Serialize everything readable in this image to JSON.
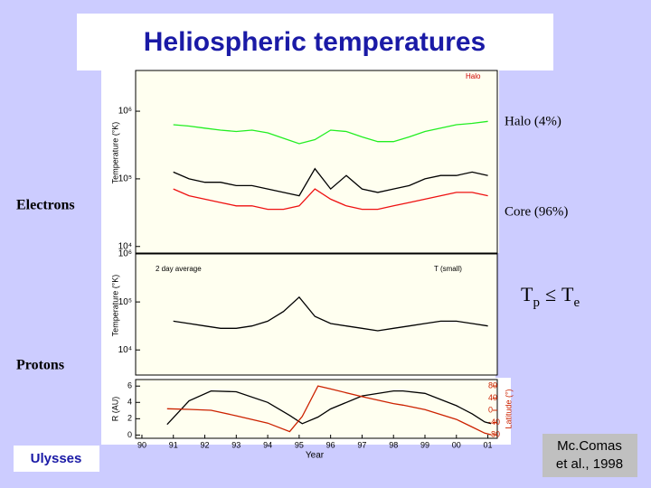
{
  "slide": {
    "title": "Heliospheric temperatures",
    "halo_label": "Halo (4%)",
    "electrons_label": "Electrons",
    "core_label": "Core (96%)",
    "proton_relation": [
      "T",
      "p",
      "≤",
      "T",
      "e"
    ],
    "protons_label": "Protons",
    "mission_label": "Ulysses",
    "citation": [
      "Mc.Comas",
      "et al., 1998"
    ]
  },
  "chart_data": [
    {
      "type": "line",
      "ylabel": "Temperature (°K)",
      "annotations": [
        "Halo"
      ],
      "log": true,
      "x": [
        91,
        91.5,
        92,
        92.5,
        93,
        93.5,
        94,
        94.5,
        95,
        95.5,
        96,
        96.5,
        97,
        97.5,
        98,
        98.5,
        99,
        99.5,
        100,
        100.5,
        101
      ],
      "xlim": [
        89.8,
        101.3
      ],
      "ylim": [
        8000,
        4000000
      ],
      "yticks": [
        {
          "value": 1000000,
          "label": "10⁶"
        },
        {
          "value": 100000,
          "label": "10⁵"
        },
        {
          "value": 10000,
          "label": "10⁴"
        }
      ],
      "series": [
        {
          "color": "#22ee22",
          "values": [
            631000,
            603000,
            562000,
            525000,
            501000,
            525000,
            479000,
            398000,
            331000,
            380000,
            525000,
            501000,
            417000,
            355000,
            355000,
            417000,
            501000,
            562000,
            631000,
            661000,
            708000
          ]
        },
        {
          "color": "#000000",
          "values": [
            126000,
            100000,
            89100,
            89100,
            79400,
            79400,
            70800,
            63100,
            56200,
            141000,
            70800,
            112000,
            70800,
            63100,
            70800,
            79400,
            100000,
            112000,
            112000,
            126000,
            112000
          ]
        },
        {
          "color": "#ee1111",
          "values": [
            70800,
            56200,
            50100,
            44700,
            39800,
            39800,
            35500,
            35500,
            39800,
            70800,
            50100,
            39800,
            35500,
            35500,
            39800,
            44700,
            50100,
            56200,
            63100,
            63100,
            56200
          ]
        }
      ]
    },
    {
      "type": "line",
      "ylabel": "Temperature (°K)",
      "annotations": [
        "2 day average",
        "T (small)"
      ],
      "log": true,
      "x": [
        91,
        91.5,
        92,
        92.5,
        93,
        93.5,
        94,
        94.5,
        95,
        95.5,
        96,
        96.5,
        97,
        97.5,
        98,
        98.5,
        99,
        99.5,
        100,
        100.5,
        101
      ],
      "xlim": [
        89.8,
        101.3
      ],
      "ylim": [
        3000,
        1000000
      ],
      "yticks": [
        {
          "value": 1000000,
          "label": "10⁶"
        },
        {
          "value": 100000,
          "label": "10⁵"
        },
        {
          "value": 10000,
          "label": "10⁴"
        }
      ],
      "series": [
        {
          "color": "#000000",
          "values": [
            39800,
            35500,
            31600,
            28200,
            28200,
            31600,
            39800,
            63100,
            126000,
            50100,
            35500,
            31600,
            28200,
            25100,
            28200,
            31600,
            35500,
            39800,
            39800,
            35500,
            31600
          ]
        }
      ]
    },
    {
      "type": "line",
      "ylabel": "R (AU)",
      "y2label": "Latitude (°)",
      "xlabel": "Year",
      "x": [
        90.8,
        91.5,
        92.2,
        93,
        94,
        94.7,
        95.1,
        95.6,
        96,
        97,
        98,
        98.3,
        99,
        100,
        100.5,
        100.9,
        101.1
      ],
      "xlim": [
        89.8,
        101.3
      ],
      "ylim": [
        -0.4,
        6.8
      ],
      "y2lim": [
        -92,
        101
      ],
      "xticks": [
        90,
        91,
        92,
        93,
        94,
        95,
        96,
        97,
        98,
        99,
        {
          "value": 100,
          "label": "00"
        },
        {
          "value": 101,
          "label": "01"
        }
      ],
      "yticks": [
        0,
        2,
        4,
        6
      ],
      "y2ticks": [
        80,
        40,
        0,
        -40,
        -80
      ],
      "series": [
        {
          "color": "#000000",
          "values": [
            1.3,
            4.2,
            5.4,
            5.3,
            4.0,
            2.4,
            1.4,
            2.2,
            3.2,
            4.8,
            5.4,
            5.4,
            5.1,
            3.6,
            2.6,
            1.6,
            1.4
          ]
        },
        {
          "color": "#cc2200",
          "axis": "y2",
          "values": [
            5,
            3,
            0,
            -18,
            -42,
            -70,
            -20,
            80,
            70,
            45,
            22,
            17,
            2,
            -30,
            -55,
            -75,
            -80
          ]
        }
      ]
    }
  ]
}
